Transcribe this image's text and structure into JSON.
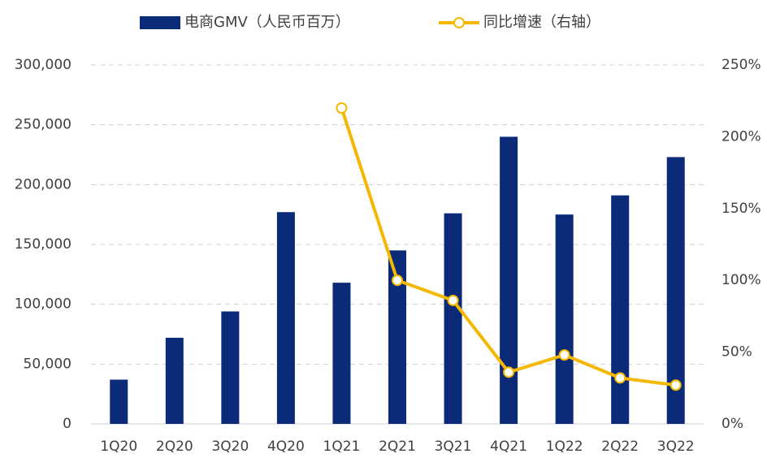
{
  "chart_data": {
    "type": "bar_line",
    "categories": [
      "1Q20",
      "2Q20",
      "3Q20",
      "4Q20",
      "1Q21",
      "2Q21",
      "3Q21",
      "4Q21",
      "1Q22",
      "2Q22",
      "3Q22"
    ],
    "series": [
      {
        "name": "电商GMV（人民币百万）",
        "type": "bar",
        "color": "#0b2a78",
        "values": [
          37000,
          72000,
          94000,
          177000,
          118000,
          145000,
          176000,
          240000,
          175000,
          191000,
          223000
        ]
      },
      {
        "name": "同比增速（右轴）",
        "type": "line",
        "axis": "y2",
        "color": "#f5b800",
        "values": [
          null,
          null,
          null,
          null,
          220,
          100,
          86,
          36,
          48,
          32,
          27
        ]
      }
    ],
    "ylim": [
      0,
      300000
    ],
    "yticks": [
      0,
      {
        "value": 50000,
        "label": "50,000"
      },
      {
        "value": 100000,
        "label": "100,000"
      },
      {
        "value": 150000,
        "label": "150,000"
      },
      {
        "value": 200000,
        "label": "200,000"
      },
      {
        "value": 250000,
        "label": "250,000"
      },
      {
        "value": 300000,
        "label": "300,000"
      }
    ],
    "y2lim": [
      0,
      250
    ],
    "y2ticks": [
      {
        "value": 0,
        "label": "0%"
      },
      {
        "value": 50,
        "label": "50%"
      },
      {
        "value": 100,
        "label": "100%"
      },
      {
        "value": 150,
        "label": "150%"
      },
      {
        "value": 200,
        "label": "200%"
      },
      {
        "value": 250,
        "label": "250%"
      }
    ],
    "grid": true,
    "legend": "top"
  }
}
